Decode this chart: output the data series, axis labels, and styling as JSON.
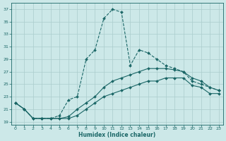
{
  "title": "",
  "xlabel": "Humidex (Indice chaleur)",
  "ylabel": "",
  "background_color": "#cce8e8",
  "grid_color": "#aacccc",
  "line_color": "#1a6666",
  "xlim": [
    -0.5,
    23.5
  ],
  "ylim": [
    18.5,
    38
  ],
  "yticks": [
    19,
    21,
    23,
    25,
    27,
    29,
    31,
    33,
    35,
    37
  ],
  "xticks": [
    0,
    1,
    2,
    3,
    4,
    5,
    6,
    7,
    8,
    9,
    10,
    11,
    12,
    13,
    14,
    15,
    16,
    17,
    18,
    19,
    20,
    21,
    22,
    23
  ],
  "line1_x": [
    0,
    1,
    2,
    3,
    4,
    5,
    6,
    7,
    8,
    9,
    10,
    11,
    12,
    13,
    14,
    15,
    16,
    17,
    18,
    19,
    20,
    21,
    22,
    23
  ],
  "line1_y": [
    22,
    21,
    19.5,
    19.5,
    19.5,
    20.0,
    22.5,
    23.0,
    29.0,
    30.5,
    35.5,
    37.0,
    36.5,
    28.0,
    30.5,
    30.0,
    29.0,
    28.0,
    27.5,
    27.0,
    25.5,
    25.0,
    24.5,
    24.0
  ],
  "line2_x": [
    0,
    1,
    2,
    3,
    4,
    5,
    6,
    7,
    8,
    9,
    10,
    11,
    12,
    13,
    14,
    15,
    16,
    17,
    18,
    19,
    20,
    21,
    22,
    23
  ],
  "line2_y": [
    22,
    21,
    19.5,
    19.5,
    19.5,
    19.5,
    19.8,
    21.0,
    22.0,
    23.0,
    24.5,
    25.5,
    26.0,
    26.5,
    27.0,
    27.5,
    27.5,
    27.5,
    27.3,
    27.0,
    26.0,
    25.5,
    24.5,
    24.0
  ],
  "line3_x": [
    0,
    1,
    2,
    3,
    4,
    5,
    6,
    7,
    8,
    9,
    10,
    11,
    12,
    13,
    14,
    15,
    16,
    17,
    18,
    19,
    20,
    21,
    22,
    23
  ],
  "line3_y": [
    22,
    21,
    19.5,
    19.5,
    19.5,
    19.5,
    19.5,
    20.0,
    21.0,
    22.0,
    23.0,
    23.5,
    24.0,
    24.5,
    25.0,
    25.5,
    25.5,
    26.0,
    26.0,
    26.0,
    24.8,
    24.5,
    23.5,
    23.5
  ]
}
